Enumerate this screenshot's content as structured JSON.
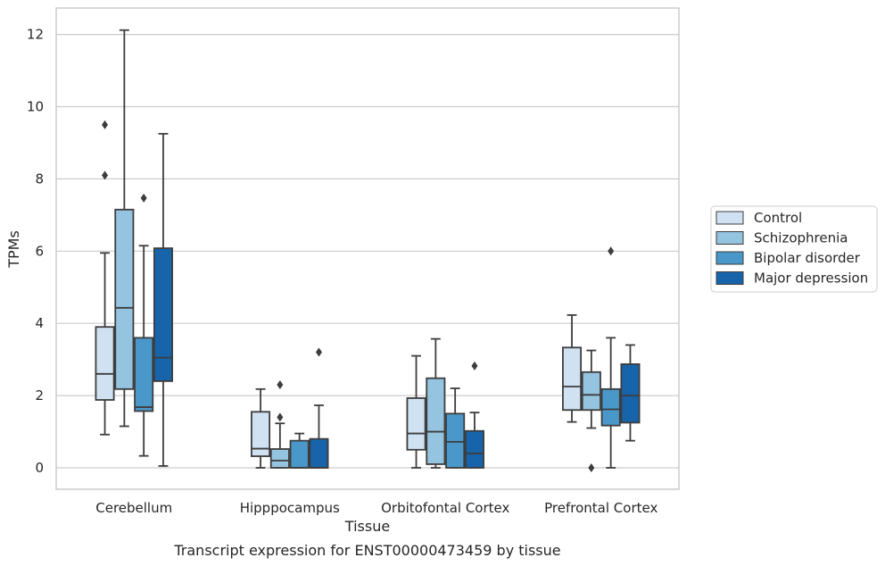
{
  "caption": "Transcript expression for ENST00000473459 by tissue",
  "chart_data": {
    "type": "boxplot",
    "xlabel": "Tissue",
    "ylabel": "TPMs",
    "ylim": [
      -0.6,
      12.7
    ],
    "yticks": [
      0,
      2,
      4,
      6,
      8,
      10,
      12
    ],
    "grid": "horizontal",
    "legend_placement": "right",
    "categories": [
      "Cerebellum",
      "Hipppocampus",
      "Orbitofontal Cortex",
      "Prefrontal Cortex"
    ],
    "series": [
      {
        "name": "Control",
        "color": "#d0e1f2",
        "boxes": [
          {
            "whislo": 0.92,
            "q1": 1.88,
            "med": 2.6,
            "q3": 3.9,
            "whishi": 5.95,
            "fliers": [
              8.1,
              9.5
            ]
          },
          {
            "whislo": 0.0,
            "q1": 0.32,
            "med": 0.53,
            "q3": 1.55,
            "whishi": 2.18,
            "fliers": []
          },
          {
            "whislo": 0.0,
            "q1": 0.5,
            "med": 0.95,
            "q3": 1.93,
            "whishi": 3.1,
            "fliers": []
          },
          {
            "whislo": 1.27,
            "q1": 1.6,
            "med": 2.25,
            "q3": 3.33,
            "whishi": 4.23,
            "fliers": []
          }
        ]
      },
      {
        "name": "Schizophrenia",
        "color": "#94c4df",
        "boxes": [
          {
            "whislo": 1.15,
            "q1": 2.18,
            "med": 4.43,
            "q3": 7.15,
            "whishi": 12.12,
            "fliers": []
          },
          {
            "whislo": 0.0,
            "q1": 0.0,
            "med": 0.2,
            "q3": 0.52,
            "whishi": 1.23,
            "fliers": [
              1.4,
              2.3
            ]
          },
          {
            "whislo": 0.0,
            "q1": 0.1,
            "med": 1.0,
            "q3": 2.48,
            "whishi": 3.57,
            "fliers": []
          },
          {
            "whislo": 1.1,
            "q1": 1.6,
            "med": 2.02,
            "q3": 2.65,
            "whishi": 3.25,
            "fliers": [
              0.0
            ]
          }
        ]
      },
      {
        "name": "Bipolar disorder",
        "color": "#4a98c9",
        "boxes": [
          {
            "whislo": 0.33,
            "q1": 1.57,
            "med": 1.68,
            "q3": 3.6,
            "whishi": 6.15,
            "fliers": [
              7.47
            ]
          },
          {
            "whislo": 0.0,
            "q1": 0.0,
            "med": 0.0,
            "q3": 0.75,
            "whishi": 0.95,
            "fliers": []
          },
          {
            "whislo": 0.0,
            "q1": 0.0,
            "med": 0.72,
            "q3": 1.5,
            "whishi": 2.2,
            "fliers": []
          },
          {
            "whislo": 0.0,
            "q1": 1.17,
            "med": 1.62,
            "q3": 2.18,
            "whishi": 3.6,
            "fliers": [
              6.0
            ]
          }
        ]
      },
      {
        "name": "Major depression",
        "color": "#1764ab",
        "boxes": [
          {
            "whislo": 0.05,
            "q1": 2.4,
            "med": 3.05,
            "q3": 6.08,
            "whishi": 9.25,
            "fliers": []
          },
          {
            "whislo": 0.0,
            "q1": 0.0,
            "med": 0.0,
            "q3": 0.8,
            "whishi": 1.73,
            "fliers": [
              3.2
            ]
          },
          {
            "whislo": 0.0,
            "q1": 0.0,
            "med": 0.4,
            "q3": 1.02,
            "whishi": 1.53,
            "fliers": [
              2.82
            ]
          },
          {
            "whislo": 0.75,
            "q1": 1.25,
            "med": 2.0,
            "q3": 2.87,
            "whishi": 3.4,
            "fliers": []
          }
        ]
      }
    ]
  }
}
